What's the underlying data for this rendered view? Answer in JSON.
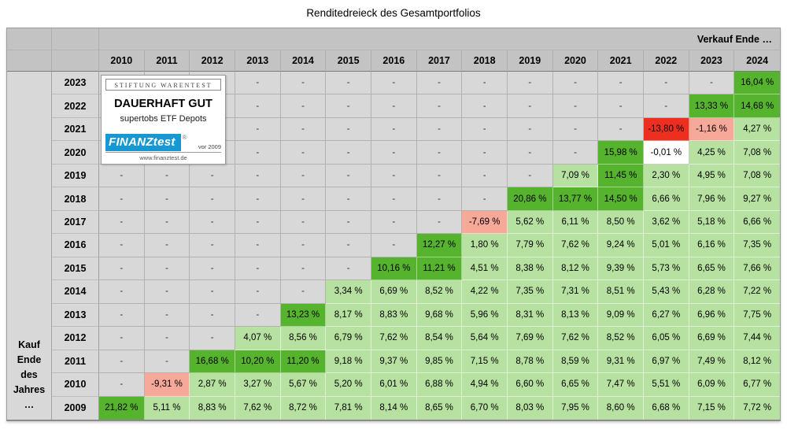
{
  "title": "Renditedreieck des Gesamtportfolios",
  "colors": {
    "header_gray": "#c3c3c3",
    "empty_cell_gray": "#d8d8d8",
    "green_strong_10_plus": "#56b32e",
    "green_light_positive": "#b7e1a1",
    "white_near_zero": "#ffffff",
    "salmon_negative": "#f6a998",
    "red_below_minus_10": "#ee2e1f",
    "finanztest_blue": "#1898d2"
  },
  "badge": {
    "issuer": "Stiftung Warentest",
    "rating": "DAUERHAFT GUT",
    "subject": "supertobs ETF Depots",
    "brand": "FINANZtest",
    "registered_mark": "®",
    "since": "vor 2009",
    "url": "www.finanztest.de"
  },
  "chart_data": {
    "type": "heatmap",
    "title": "Renditedreieck des Gesamtportfolios",
    "x_label": "Verkauf Ende …",
    "y_label": "Kauf Ende des Jahres …",
    "legend_position": "none",
    "columns": [
      "2010",
      "2011",
      "2012",
      "2013",
      "2014",
      "2015",
      "2016",
      "2017",
      "2018",
      "2019",
      "2020",
      "2021",
      "2022",
      "2023",
      "2024"
    ],
    "rows": [
      "2023",
      "2022",
      "2021",
      "2020",
      "2019",
      "2018",
      "2017",
      "2016",
      "2015",
      "2014",
      "2013",
      "2012",
      "2011",
      "2010",
      "2009"
    ],
    "values": [
      [
        "-",
        "-",
        "-",
        "-",
        "-",
        "-",
        "-",
        "-",
        "-",
        "-",
        "-",
        "-",
        "-",
        "-",
        "16,04 %"
      ],
      [
        "-",
        "-",
        "-",
        "-",
        "-",
        "-",
        "-",
        "-",
        "-",
        "-",
        "-",
        "-",
        "-",
        "13,33 %",
        "14,68 %"
      ],
      [
        "-",
        "-",
        "-",
        "-",
        "-",
        "-",
        "-",
        "-",
        "-",
        "-",
        "-",
        "-",
        "-13,80 %",
        "-1,16 %",
        "4,27 %"
      ],
      [
        "-",
        "-",
        "-",
        "-",
        "-",
        "-",
        "-",
        "-",
        "-",
        "-",
        "-",
        "15,98 %",
        "-0,01 %",
        "4,25 %",
        "7,08 %"
      ],
      [
        "-",
        "-",
        "-",
        "-",
        "-",
        "-",
        "-",
        "-",
        "-",
        "-",
        "7,09 %",
        "11,45 %",
        "2,30 %",
        "4,95 %",
        "7,08 %"
      ],
      [
        "-",
        "-",
        "-",
        "-",
        "-",
        "-",
        "-",
        "-",
        "-",
        "20,86 %",
        "13,77 %",
        "14,50 %",
        "6,66 %",
        "7,96 %",
        "9,27 %"
      ],
      [
        "-",
        "-",
        "-",
        "-",
        "-",
        "-",
        "-",
        "-",
        "-7,69 %",
        "5,62 %",
        "6,11 %",
        "8,50 %",
        "3,62 %",
        "5,18 %",
        "6,66 %"
      ],
      [
        "-",
        "-",
        "-",
        "-",
        "-",
        "-",
        "-",
        "12,27 %",
        "1,80 %",
        "7,79 %",
        "7,62 %",
        "9,24 %",
        "5,01 %",
        "6,16 %",
        "7,35 %"
      ],
      [
        "-",
        "-",
        "-",
        "-",
        "-",
        "-",
        "10,16 %",
        "11,21 %",
        "4,51 %",
        "8,38 %",
        "8,12 %",
        "9,39 %",
        "5,73 %",
        "6,65 %",
        "7,66 %"
      ],
      [
        "-",
        "-",
        "-",
        "-",
        "-",
        "3,34 %",
        "6,69 %",
        "8,52 %",
        "4,22 %",
        "7,35 %",
        "7,31 %",
        "8,51 %",
        "5,43 %",
        "6,28 %",
        "7,22 %"
      ],
      [
        "-",
        "-",
        "-",
        "-",
        "13,23 %",
        "8,17 %",
        "8,83 %",
        "9,68 %",
        "5,96 %",
        "8,31 %",
        "8,13 %",
        "9,09 %",
        "6,27 %",
        "6,96 %",
        "7,75 %"
      ],
      [
        "-",
        "-",
        "-",
        "4,07 %",
        "8,56 %",
        "6,79 %",
        "7,62 %",
        "8,54 %",
        "5,64 %",
        "7,69 %",
        "7,62 %",
        "8,52 %",
        "6,05 %",
        "6,69 %",
        "7,44 %"
      ],
      [
        "-",
        "-",
        "16,68 %",
        "10,20 %",
        "11,20 %",
        "9,18 %",
        "9,37 %",
        "9,85 %",
        "7,15 %",
        "8,78 %",
        "8,59 %",
        "9,31 %",
        "6,97 %",
        "7,49 %",
        "8,12 %"
      ],
      [
        "-",
        "-9,31 %",
        "2,87 %",
        "3,27 %",
        "5,67 %",
        "5,20 %",
        "6,01 %",
        "6,88 %",
        "4,94 %",
        "6,60 %",
        "6,65 %",
        "7,47 %",
        "5,51 %",
        "6,09 %",
        "6,77 %"
      ],
      [
        "21,82 %",
        "5,11 %",
        "8,83 %",
        "7,62 %",
        "8,72 %",
        "7,81 %",
        "8,14 %",
        "8,65 %",
        "6,70 %",
        "8,03 %",
        "7,95 %",
        "8,60 %",
        "6,68 %",
        "7,15 %",
        "7,72 %"
      ]
    ],
    "color_rule": {
      "dark_green_min": 10,
      "light_green_min_exclusive": 0,
      "white_min_exclusive": -1,
      "salmon_min_exclusive": -10
    }
  }
}
